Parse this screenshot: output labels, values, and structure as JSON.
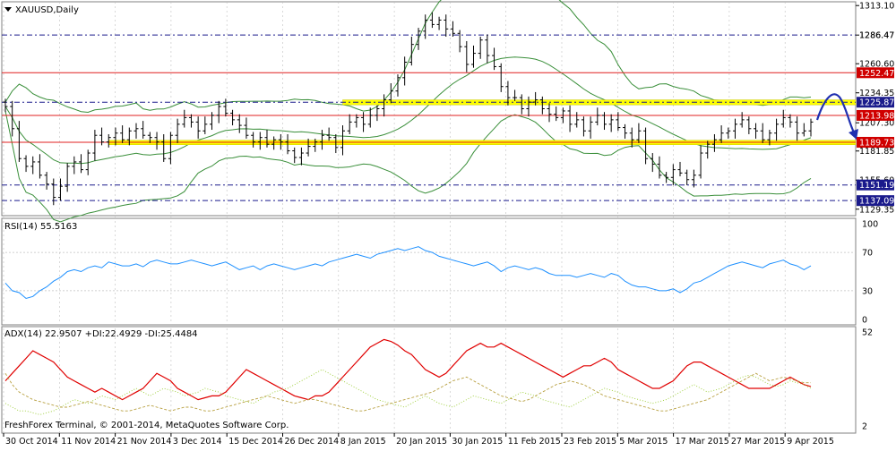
{
  "colors": {
    "background": "#ffffff",
    "grid": "#c0c0c0",
    "candles": "#000000",
    "bands": "#3a8f3a",
    "support_band": "#ffff00",
    "support_edge": "#c8c800",
    "red_level": "#e02020",
    "blue_level": "#1a1a8c",
    "rsi": "#1e90ff",
    "adx": "#e00000",
    "plus_di": "#9acd32",
    "minus_di": "#b8a040",
    "arrow": "#1f2fb0",
    "price_badge": "#d00000",
    "blue_badge": "#1a1a8c"
  },
  "chart_data": [
    {
      "type": "candlestick",
      "title": "XAUUSD,Daily",
      "x_dates": [
        "30 Oct 2014",
        "11 Nov 2014",
        "21 Nov 2014",
        "3 Dec 2014",
        "15 Dec 2014",
        "26 Dec 2014",
        "8 Jan 2015",
        "20 Jan 2015",
        "30 Jan 2015",
        "11 Feb 2015",
        "23 Feb 2015",
        "5 Mar 2015",
        "17 Mar 2015",
        "27 Mar 2015",
        "9 Apr 2015"
      ],
      "y_ticks": [
        1313.1,
        1286.47,
        1260.6,
        1234.35,
        1207.3,
        1181.85,
        1155.6,
        1129.35
      ],
      "ylim": [
        1123.5,
        1316.5
      ],
      "levels_red": [
        1252.47,
        1213.98,
        1189.73
      ],
      "levels_blue": [
        1286.47,
        1225.87,
        1151.19,
        1137.09
      ],
      "labeled_levels": [
        {
          "value": 1286.47,
          "label": "1286.47",
          "style": "plain"
        },
        {
          "value": 1252.47,
          "label": "1252.47",
          "style": "red"
        },
        {
          "value": 1225.87,
          "label": "1225.87",
          "style": "blue"
        },
        {
          "value": 1213.98,
          "label": "1213.98",
          "style": "red"
        },
        {
          "value": 1189.73,
          "label": "1189.73",
          "style": "red"
        },
        {
          "value": 1151.19,
          "label": "1151.19",
          "style": "blue"
        },
        {
          "value": 1137.09,
          "label": "1137.09",
          "style": "blue"
        }
      ],
      "support_zones": [
        {
          "x_start_bar": 15,
          "low": 1187.5,
          "high": 1191.5
        },
        {
          "x_start_bar": 49,
          "low": 1223.5,
          "high": 1228.0
        }
      ],
      "closes": [
        1222,
        1202,
        1175,
        1168,
        1172,
        1160,
        1152,
        1140,
        1150,
        1168,
        1172,
        1165,
        1180,
        1196,
        1190,
        1194,
        1198,
        1192,
        1200,
        1202,
        1196,
        1194,
        1190,
        1175,
        1196,
        1206,
        1212,
        1208,
        1200,
        1206,
        1214,
        1222,
        1216,
        1210,
        1205,
        1196,
        1190,
        1194,
        1188,
        1192,
        1190,
        1182,
        1176,
        1180,
        1186,
        1190,
        1196,
        1194,
        1185,
        1200,
        1208,
        1212,
        1206,
        1214,
        1220,
        1228,
        1236,
        1248,
        1262,
        1278,
        1290,
        1300,
        1296,
        1300,
        1292,
        1288,
        1276,
        1260,
        1270,
        1282,
        1268,
        1258,
        1240,
        1230,
        1230,
        1220,
        1226,
        1228,
        1220,
        1215,
        1212,
        1218,
        1206,
        1210,
        1200,
        1208,
        1214,
        1206,
        1210,
        1203,
        1198,
        1192,
        1200,
        1175,
        1170,
        1160,
        1158,
        1165,
        1162,
        1156,
        1160,
        1180,
        1188,
        1192,
        1198,
        1200,
        1206,
        1210,
        1202,
        1200,
        1192,
        1198,
        1206,
        1212,
        1208,
        1198,
        1200,
        1208
      ]
    },
    {
      "type": "line",
      "title": "RSI(14) 55.5163",
      "y_ticks": [
        100,
        70,
        30,
        0
      ],
      "ylim": [
        0,
        100
      ],
      "levels": [
        70,
        30
      ],
      "values": [
        38,
        30,
        28,
        22,
        24,
        30,
        34,
        40,
        44,
        50,
        52,
        50,
        54,
        56,
        54,
        60,
        58,
        56,
        56,
        58,
        55,
        60,
        62,
        60,
        58,
        58,
        60,
        62,
        60,
        58,
        56,
        58,
        60,
        56,
        52,
        54,
        56,
        52,
        56,
        58,
        56,
        54,
        52,
        54,
        56,
        58,
        56,
        60,
        62,
        64,
        66,
        68,
        66,
        64,
        68,
        70,
        72,
        74,
        72,
        74,
        76,
        72,
        70,
        66,
        64,
        62,
        60,
        58,
        56,
        58,
        60,
        56,
        50,
        54,
        56,
        54,
        52,
        54,
        52,
        48,
        46,
        46,
        46,
        44,
        46,
        48,
        46,
        44,
        48,
        46,
        40,
        36,
        34,
        34,
        32,
        30,
        30,
        32,
        28,
        32,
        38,
        40,
        44,
        48,
        52,
        56,
        58,
        60,
        58,
        56,
        54,
        58,
        60,
        62,
        58,
        56,
        52,
        56
      ]
    },
    {
      "type": "line",
      "title": "ADX(14) 22.9507 +DI:22.4929 -DI:25.4484",
      "y_ticks": [
        52,
        2
      ],
      "ylim": [
        2,
        52
      ],
      "series": [
        {
          "name": "ADX(14)",
          "values": [
            26,
            30,
            34,
            38,
            42,
            40,
            38,
            36,
            32,
            28,
            26,
            24,
            22,
            20,
            22,
            20,
            18,
            16,
            18,
            20,
            22,
            26,
            30,
            28,
            26,
            22,
            20,
            18,
            16,
            17,
            18,
            18,
            20,
            24,
            28,
            32,
            30,
            28,
            26,
            24,
            22,
            20,
            18,
            17,
            16,
            18,
            18,
            20,
            24,
            28,
            32,
            36,
            40,
            44,
            46,
            48,
            47,
            45,
            42,
            40,
            36,
            32,
            30,
            28,
            30,
            34,
            38,
            42,
            44,
            46,
            44,
            44,
            46,
            44,
            42,
            40,
            38,
            36,
            34,
            32,
            30,
            28,
            30,
            32,
            34,
            34,
            36,
            38,
            36,
            32,
            30,
            28,
            26,
            24,
            22,
            22,
            24,
            26,
            30,
            34,
            36,
            36,
            34,
            32,
            30,
            28,
            26,
            24,
            22,
            22,
            22,
            22,
            24,
            26,
            28,
            26,
            24,
            23
          ]
        },
        {
          "name": "+DI",
          "values": [
            14,
            12,
            10,
            10,
            9,
            8,
            9,
            10,
            12,
            14,
            16,
            15,
            14,
            16,
            18,
            17,
            16,
            18,
            20,
            22,
            20,
            18,
            20,
            22,
            21,
            20,
            18,
            19,
            20,
            22,
            21,
            20,
            18,
            17,
            16,
            15,
            14,
            16,
            18,
            20,
            21,
            22,
            24,
            26,
            28,
            30,
            32,
            30,
            28,
            26,
            24,
            22,
            20,
            18,
            16,
            15,
            14,
            13,
            12,
            14,
            16,
            18,
            16,
            14,
            13,
            12,
            14,
            16,
            18,
            17,
            16,
            15,
            14,
            16,
            18,
            20,
            19,
            18,
            16,
            15,
            14,
            13,
            12,
            14,
            16,
            18,
            20,
            22,
            21,
            20,
            18,
            17,
            16,
            15,
            14,
            15,
            16,
            18,
            20,
            22,
            24,
            22,
            20,
            21,
            22,
            24,
            26,
            28,
            29,
            28,
            26,
            24,
            23,
            24,
            26,
            25,
            24,
            22
          ]
        },
        {
          "name": "-DI",
          "values": [
            30,
            24,
            20,
            18,
            16,
            15,
            14,
            13,
            12,
            12,
            13,
            14,
            15,
            14,
            13,
            12,
            11,
            10,
            10,
            11,
            12,
            13,
            12,
            11,
            10,
            11,
            12,
            12,
            11,
            10,
            10,
            11,
            12,
            13,
            14,
            15,
            16,
            17,
            18,
            17,
            16,
            15,
            14,
            15,
            16,
            16,
            15,
            14,
            13,
            12,
            11,
            10,
            10,
            11,
            12,
            13,
            14,
            15,
            16,
            17,
            18,
            19,
            20,
            22,
            24,
            26,
            27,
            28,
            26,
            24,
            22,
            20,
            18,
            17,
            16,
            15,
            16,
            18,
            20,
            22,
            24,
            25,
            26,
            25,
            24,
            22,
            20,
            18,
            17,
            16,
            15,
            14,
            13,
            12,
            11,
            10,
            10,
            11,
            12,
            13,
            14,
            15,
            16,
            18,
            20,
            22,
            24,
            26,
            28,
            30,
            28,
            26,
            27,
            28,
            27,
            26,
            25,
            25
          ]
        }
      ]
    }
  ],
  "footer": "FreshForex Terminal, © 2001-2014, MetaQuotes Software Corp."
}
